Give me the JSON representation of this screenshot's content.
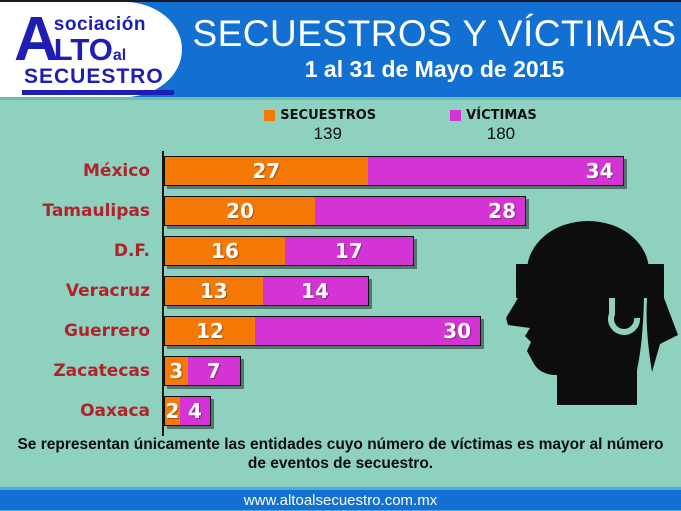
{
  "header": {
    "logo": {
      "word1_initial": "A",
      "word1_rest": "sociación",
      "word2": "LTO",
      "word3": "al",
      "word4": "SECUESTRO"
    },
    "title": "SECUESTROS Y VÍCTIMAS",
    "subtitle": "1 al 31 de Mayo de 2015"
  },
  "legend": {
    "items": [
      {
        "label": "SECUESTROS",
        "total": "139",
        "color": "#f67908"
      },
      {
        "label": "VÍCTIMAS",
        "total": "180",
        "color": "#d434d3"
      }
    ]
  },
  "chart_data": {
    "type": "bar",
    "orientation": "horizontal",
    "stacked": true,
    "title": "SECUESTROS Y VÍCTIMAS",
    "period": "1 al 31 de Mayo de 2015",
    "categories": [
      "México",
      "Tamaulipas",
      "D.F.",
      "Veracruz",
      "Guerrero",
      "Zacatecas",
      "Oaxaca"
    ],
    "series": [
      {
        "name": "SECUESTROS",
        "color": "#f67908",
        "national_total": 139,
        "values": [
          27,
          20,
          16,
          13,
          12,
          3,
          2
        ]
      },
      {
        "name": "VÍCTIMAS",
        "color": "#d434d3",
        "national_total": 180,
        "values": [
          34,
          28,
          17,
          14,
          30,
          7,
          4
        ]
      }
    ],
    "value_labels": "inside",
    "legend_position": "top",
    "grid": false
  },
  "note": "Se representan únicamente las entidades cuyo número de víctimas es mayor al número de eventos de secuestro.",
  "footer": {
    "url": "www.altoalsecuestro.com.mx"
  },
  "colors": {
    "header_blue": "#1170d2",
    "background_teal": "#8ed1be",
    "secuestros_orange": "#f67908",
    "victimas_magenta": "#d434d3",
    "category_red": "#b0232b",
    "logo_navy": "#1e1eb4",
    "footer_accent": "#4fa8e0",
    "silhouette_black": "#0d0d0d"
  }
}
